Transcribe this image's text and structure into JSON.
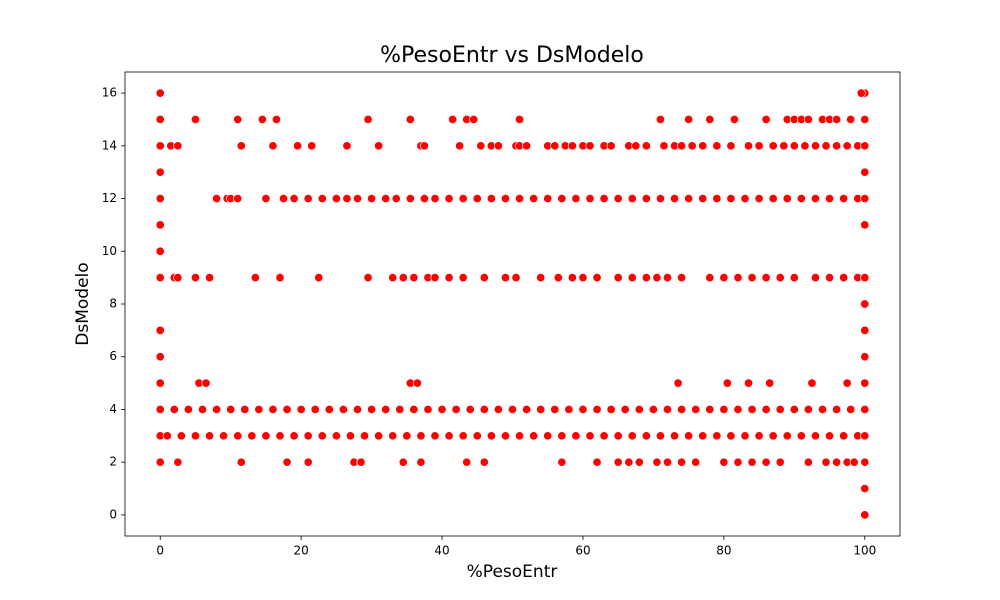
{
  "chart_data": {
    "type": "scatter",
    "title": "%PesoEntr vs DsModelo",
    "x_label": "%PesoEntr",
    "y_label": "DsModelo",
    "color": "#ff0000",
    "xlim": [
      -5,
      105
    ],
    "ylim": [
      -0.8,
      16.8
    ],
    "xticks": [
      0,
      20,
      40,
      60,
      80,
      100
    ],
    "yticks": [
      0,
      2,
      4,
      6,
      8,
      10,
      12,
      14,
      16
    ],
    "x": [
      0,
      100,
      99.5,
      0,
      5,
      11,
      14.5,
      16.5,
      29.5,
      35.5,
      41.5,
      43.5,
      44.5,
      51,
      71,
      75,
      78,
      81.5,
      86,
      89,
      90,
      91,
      92,
      94,
      95,
      96,
      98,
      100,
      0,
      1.5,
      2.5,
      11.5,
      16,
      19.5,
      21.5,
      26.5,
      31,
      37,
      37.5,
      42.5,
      45.5,
      47,
      48,
      50.5,
      51,
      52,
      55,
      56,
      57.5,
      58.5,
      60,
      61,
      63,
      64,
      66.5,
      67.5,
      69,
      71.5,
      73,
      74,
      75.5,
      77,
      79,
      81,
      83.5,
      85,
      87,
      88.5,
      90,
      91.5,
      93,
      94.5,
      96,
      97.5,
      99,
      100,
      0,
      100,
      0,
      8,
      9.5,
      10,
      11,
      15,
      17.5,
      19,
      21,
      23,
      25,
      26.5,
      28,
      30,
      32,
      33.5,
      35.5,
      37.5,
      39,
      41,
      43,
      45,
      47,
      49,
      51,
      53,
      55,
      57,
      59,
      61,
      63,
      65,
      67,
      69,
      71,
      73,
      75,
      77,
      79,
      81,
      83,
      85,
      87,
      89,
      91,
      93,
      95,
      97,
      99,
      100,
      0,
      100,
      0,
      0,
      2,
      2.5,
      5,
      7,
      13.5,
      17,
      22.5,
      29.5,
      33,
      34.5,
      36,
      38,
      39,
      41,
      43,
      46,
      49,
      50.5,
      54,
      56.5,
      58.5,
      60,
      62,
      65,
      67,
      69,
      70.5,
      72,
      74,
      78,
      80,
      82,
      84,
      86,
      88,
      90,
      93,
      95,
      97,
      99,
      100,
      100,
      0,
      100,
      0,
      100,
      0,
      5.5,
      6.5,
      35.5,
      36.5,
      73.5,
      80.5,
      83.5,
      86.5,
      92.5,
      97.5,
      100,
      0,
      2,
      4,
      6,
      8,
      10,
      12,
      14,
      16,
      18,
      20,
      22,
      24,
      26,
      28,
      30,
      32,
      34,
      36,
      38,
      40,
      42,
      44,
      46,
      48,
      50,
      52,
      54,
      56,
      58,
      60,
      62,
      64,
      66,
      68,
      70,
      72,
      74,
      76,
      78,
      80,
      82,
      84,
      86,
      88,
      90,
      92,
      94,
      96,
      98,
      100,
      0,
      1,
      3,
      5,
      7,
      9,
      11,
      13,
      15,
      17,
      19,
      21,
      23,
      25,
      27,
      29,
      31,
      33,
      35,
      37,
      39,
      41,
      43,
      45,
      47,
      49,
      51,
      53,
      55,
      57,
      59,
      61,
      63,
      65,
      67,
      69,
      71,
      73,
      75,
      77,
      79,
      81,
      83,
      85,
      87,
      89,
      91,
      93,
      95,
      97,
      99,
      100,
      0,
      2.5,
      11.5,
      18,
      21,
      27.5,
      28.5,
      34.5,
      37,
      43.5,
      46,
      57,
      62,
      65,
      66.5,
      68,
      70.5,
      72,
      74,
      76,
      80,
      82,
      84,
      86,
      88,
      92,
      94.5,
      96,
      97.5,
      98.5,
      100,
      100,
      100
    ],
    "values": [
      16,
      16,
      16,
      15,
      15,
      15,
      15,
      15,
      15,
      15,
      15,
      15,
      15,
      15,
      15,
      15,
      15,
      15,
      15,
      15,
      15,
      15,
      15,
      15,
      15,
      15,
      15,
      15,
      14,
      14,
      14,
      14,
      14,
      14,
      14,
      14,
      14,
      14,
      14,
      14,
      14,
      14,
      14,
      14,
      14,
      14,
      14,
      14,
      14,
      14,
      14,
      14,
      14,
      14,
      14,
      14,
      14,
      14,
      14,
      14,
      14,
      14,
      14,
      14,
      14,
      14,
      14,
      14,
      14,
      14,
      14,
      14,
      14,
      14,
      14,
      14,
      13,
      13,
      12,
      12,
      12,
      12,
      12,
      12,
      12,
      12,
      12,
      12,
      12,
      12,
      12,
      12,
      12,
      12,
      12,
      12,
      12,
      12,
      12,
      12,
      12,
      12,
      12,
      12,
      12,
      12,
      12,
      12,
      12,
      12,
      12,
      12,
      12,
      12,
      12,
      12,
      12,
      12,
      12,
      12,
      12,
      12,
      12,
      12,
      12,
      12,
      12,
      12,
      11,
      11,
      10,
      9,
      9,
      9,
      9,
      9,
      9,
      9,
      9,
      9,
      9,
      9,
      9,
      9,
      9,
      9,
      9,
      9,
      9,
      9,
      9,
      9,
      9,
      9,
      9,
      9,
      9,
      9,
      9,
      9,
      9,
      9,
      9,
      9,
      9,
      9,
      9,
      9,
      9,
      9,
      9,
      9,
      9,
      8,
      7,
      7,
      6,
      6,
      5,
      5,
      5,
      5,
      5,
      5,
      5,
      5,
      5,
      5,
      5,
      5,
      4,
      4,
      4,
      4,
      4,
      4,
      4,
      4,
      4,
      4,
      4,
      4,
      4,
      4,
      4,
      4,
      4,
      4,
      4,
      4,
      4,
      4,
      4,
      4,
      4,
      4,
      4,
      4,
      4,
      4,
      4,
      4,
      4,
      4,
      4,
      4,
      4,
      4,
      4,
      4,
      4,
      4,
      4,
      4,
      4,
      4,
      4,
      4,
      4,
      4,
      4,
      3,
      3,
      3,
      3,
      3,
      3,
      3,
      3,
      3,
      3,
      3,
      3,
      3,
      3,
      3,
      3,
      3,
      3,
      3,
      3,
      3,
      3,
      3,
      3,
      3,
      3,
      3,
      3,
      3,
      3,
      3,
      3,
      3,
      3,
      3,
      3,
      3,
      3,
      3,
      3,
      3,
      3,
      3,
      3,
      3,
      3,
      3,
      3,
      3,
      3,
      3,
      3,
      2,
      2,
      2,
      2,
      2,
      2,
      2,
      2,
      2,
      2,
      2,
      2,
      2,
      2,
      2,
      2,
      2,
      2,
      2,
      2,
      2,
      2,
      2,
      2,
      2,
      2,
      2,
      2,
      2,
      2,
      2,
      1,
      0
    ]
  }
}
